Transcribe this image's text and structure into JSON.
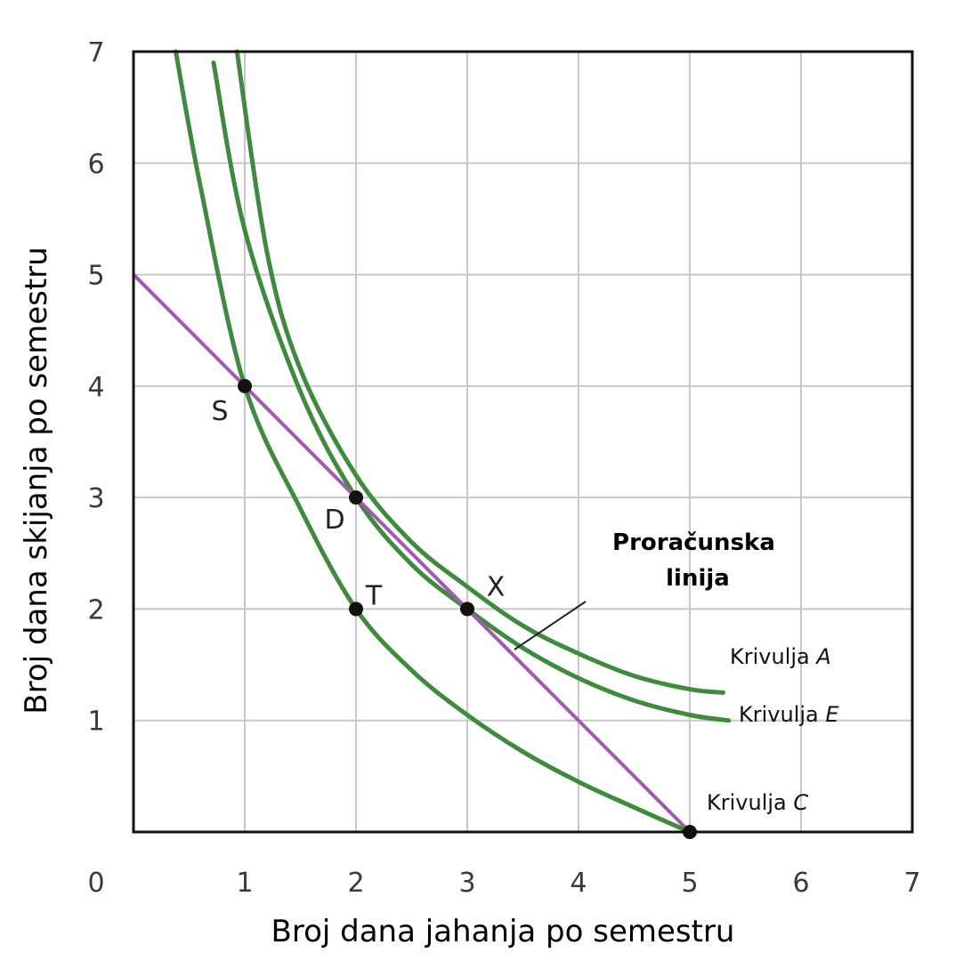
{
  "chart_data": {
    "type": "line",
    "xlabel": "Broj dana jahanja po semestru",
    "ylabel": "Broj dana skijanja po semestru",
    "xlim": [
      0,
      7
    ],
    "ylim": [
      0,
      7
    ],
    "x_ticks": [
      "0",
      "1",
      "2",
      "3",
      "4",
      "5",
      "6",
      "7"
    ],
    "y_ticks": [
      "1",
      "2",
      "3",
      "4",
      "5",
      "6",
      "7"
    ],
    "grid": true,
    "budget_line": {
      "name": "Proračunska linija",
      "label_lines": [
        "Proračunska",
        "linija"
      ],
      "color": "#a05bb0",
      "x": [
        0,
        5
      ],
      "y": [
        5,
        0
      ]
    },
    "series": [
      {
        "name": "Krivulja A",
        "label_prefix": "Krivulja ",
        "label_letter": "A",
        "color": "#3f8a3f",
        "x": [
          0.93,
          1.2,
          1.5,
          2.0,
          2.5,
          3.0,
          3.5,
          4.0,
          4.5,
          5.0,
          5.3
        ],
        "y": [
          7.0,
          5.2,
          4.15,
          3.2,
          2.6,
          2.2,
          1.85,
          1.6,
          1.4,
          1.28,
          1.25
        ]
      },
      {
        "name": "Krivulja E",
        "label_prefix": "Krivulja ",
        "label_letter": "E",
        "color": "#3f8a3f",
        "x": [
          0.72,
          1.0,
          1.5,
          2.0,
          2.5,
          3.0,
          3.5,
          4.0,
          4.5,
          5.0,
          5.35
        ],
        "y": [
          6.9,
          5.4,
          3.95,
          3.0,
          2.4,
          2.0,
          1.65,
          1.38,
          1.18,
          1.05,
          1.0
        ]
      },
      {
        "name": "Krivulja C",
        "label_prefix": "Krivulja ",
        "label_letter": "C",
        "color": "#3f8a3f",
        "x": [
          0.38,
          0.6,
          1.0,
          1.5,
          2.0,
          2.5,
          3.0,
          3.5,
          4.0,
          4.5,
          5.0
        ],
        "y": [
          7.0,
          5.8,
          4.0,
          2.9,
          2.0,
          1.45,
          1.05,
          0.72,
          0.45,
          0.22,
          0.0
        ]
      }
    ],
    "points": [
      {
        "label": "S",
        "x": 1,
        "y": 4
      },
      {
        "label": "D",
        "x": 2,
        "y": 3
      },
      {
        "label": "T",
        "x": 2,
        "y": 2
      },
      {
        "label": "X",
        "x": 3,
        "y": 2
      },
      {
        "label": "",
        "x": 5,
        "y": 0
      }
    ]
  }
}
